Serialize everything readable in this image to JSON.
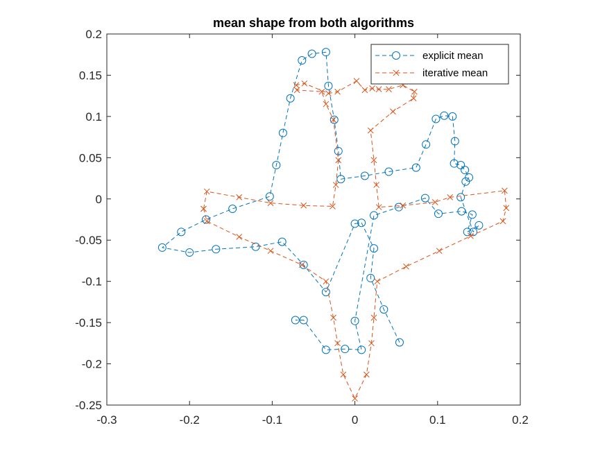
{
  "chart_data": {
    "type": "line",
    "title": "mean shape from both algorithms",
    "xlabel": "",
    "ylabel": "",
    "xlim": [
      -0.3,
      0.2
    ],
    "ylim": [
      -0.25,
      0.2
    ],
    "x_ticks": [
      -0.3,
      -0.2,
      -0.1,
      0,
      0.1,
      0.2
    ],
    "x_tick_labels": [
      "-0.3",
      "-0.2",
      "-0.1",
      "0",
      "0.1",
      "0.2"
    ],
    "y_ticks": [
      -0.25,
      -0.2,
      -0.15,
      -0.1,
      -0.05,
      0,
      0.05,
      0.1,
      0.15,
      0.2
    ],
    "y_tick_labels": [
      "-0.25",
      "-0.2",
      "-0.15",
      "-0.1",
      "-0.05",
      "0",
      "0.05",
      "0.1",
      "0.15",
      "0.2"
    ],
    "grid": false,
    "box": true,
    "legend_position": "top-right",
    "series": [
      {
        "name": "explicit mean",
        "color": "#0072BD",
        "marker": "circle",
        "line_style": "dashed",
        "x": [
          0.054,
          0.035,
          0.019,
          0.023,
          0.008,
          0.0,
          -0.035,
          -0.062,
          -0.088,
          -0.12,
          -0.168,
          -0.2,
          -0.233,
          -0.21,
          -0.18,
          -0.148,
          -0.103,
          -0.095,
          -0.087,
          -0.078,
          -0.064,
          -0.052,
          -0.035,
          -0.032,
          -0.025,
          -0.02,
          -0.017,
          0.012,
          0.041,
          0.074,
          0.086,
          0.098,
          0.108,
          0.118,
          0.121,
          0.12,
          0.128,
          0.133,
          0.138,
          0.134,
          0.128,
          0.143,
          0.15,
          0.136,
          0.142,
          0.129,
          0.101,
          0.085,
          0.053,
          0.023,
          0.0,
          0.008,
          -0.012,
          -0.035,
          -0.062,
          -0.072
        ],
        "y": [
          -0.174,
          -0.134,
          -0.096,
          -0.06,
          -0.029,
          -0.03,
          -0.113,
          -0.08,
          -0.052,
          -0.058,
          -0.061,
          -0.065,
          -0.059,
          -0.04,
          -0.025,
          -0.012,
          0.003,
          0.041,
          0.08,
          0.122,
          0.168,
          0.176,
          0.178,
          0.137,
          0.096,
          0.058,
          0.024,
          0.028,
          0.033,
          0.038,
          0.066,
          0.097,
          0.101,
          0.1,
          0.07,
          0.043,
          0.041,
          0.035,
          0.026,
          0.021,
          0.002,
          -0.04,
          -0.032,
          -0.04,
          -0.019,
          -0.015,
          -0.018,
          0.001,
          -0.01,
          -0.02,
          -0.148,
          -0.183,
          -0.182,
          -0.183,
          -0.147,
          -0.147
        ]
      },
      {
        "name": "iterative mean",
        "color": "#D95319",
        "marker": "x",
        "line_style": "dashed",
        "x": [
          -0.183,
          -0.179,
          -0.14,
          -0.102,
          -0.062,
          -0.027,
          -0.023,
          -0.02,
          -0.026,
          -0.035,
          -0.04,
          -0.07,
          -0.071,
          -0.061,
          -0.032,
          -0.021,
          0.002,
          0.012,
          0.021,
          0.029,
          0.041,
          0.058,
          0.072,
          0.071,
          0.046,
          0.019,
          0.023,
          0.026,
          0.029,
          0.058,
          0.097,
          0.115,
          0.181,
          0.183,
          0.179,
          0.14,
          0.102,
          0.062,
          0.027,
          0.023,
          0.02,
          0.014,
          0.0,
          -0.014,
          -0.021,
          -0.026,
          -0.035,
          -0.064,
          -0.102,
          -0.14,
          -0.179,
          -0.183
        ],
        "y": [
          -0.012,
          0.009,
          0.002,
          -0.005,
          -0.008,
          -0.009,
          0.017,
          0.047,
          0.096,
          0.115,
          0.13,
          0.132,
          0.138,
          0.14,
          0.128,
          0.13,
          0.143,
          0.132,
          0.134,
          0.133,
          0.133,
          0.138,
          0.13,
          0.122,
          0.106,
          0.083,
          0.047,
          0.017,
          -0.01,
          -0.008,
          -0.004,
          0.002,
          0.01,
          -0.011,
          -0.027,
          -0.045,
          -0.063,
          -0.082,
          -0.1,
          -0.144,
          -0.175,
          -0.213,
          -0.242,
          -0.213,
          -0.175,
          -0.144,
          -0.1,
          -0.08,
          -0.063,
          -0.046,
          -0.027,
          -0.012
        ]
      }
    ]
  }
}
